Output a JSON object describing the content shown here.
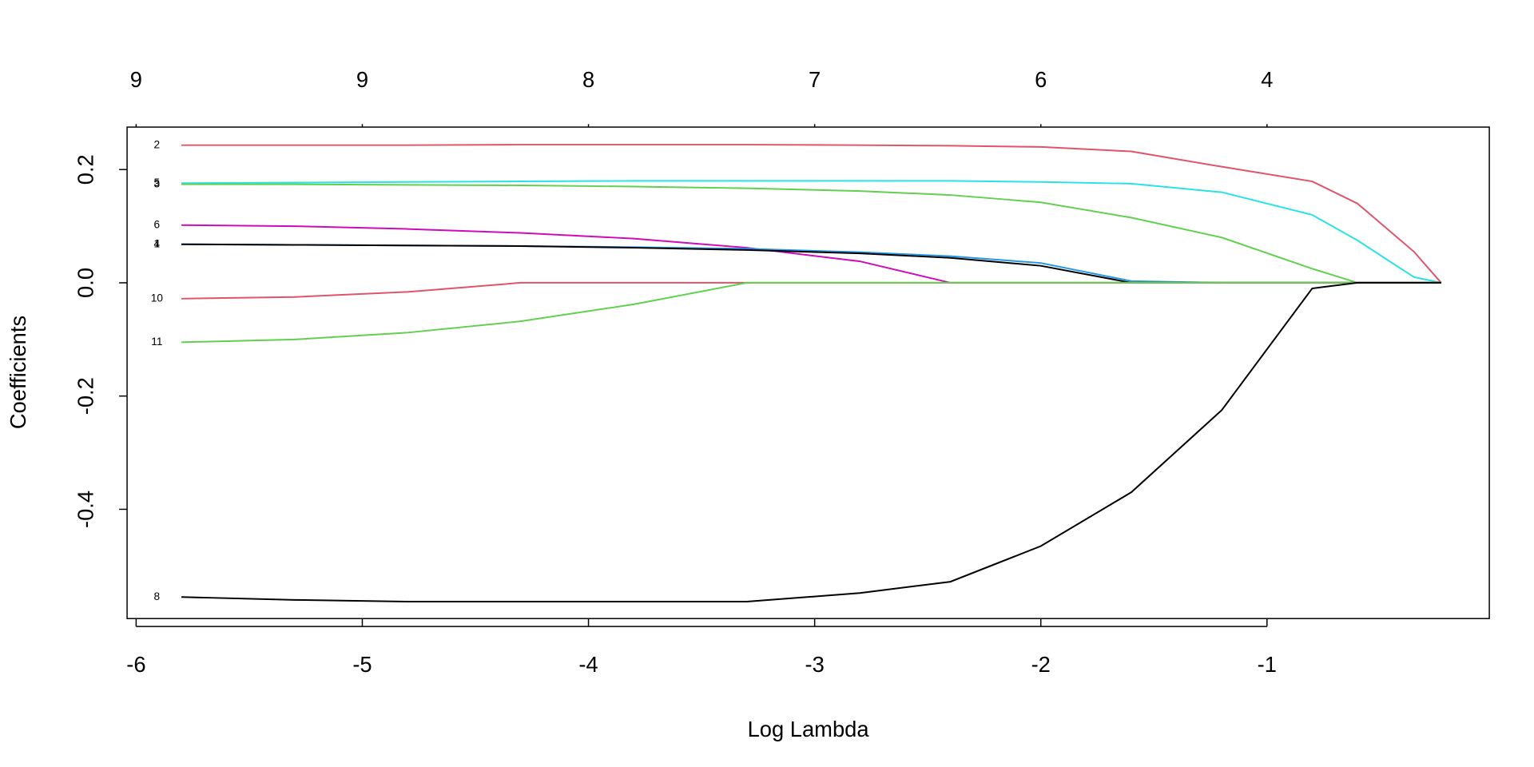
{
  "chart_data": {
    "type": "line",
    "xlabel": "Log Lambda",
    "ylabel": "Coefficients",
    "x": [
      -5.8,
      -5.3,
      -4.8,
      -4.3,
      -3.8,
      -3.3,
      -2.8,
      -2.4,
      -2.0,
      -1.6,
      -1.2,
      -0.8,
      -0.6,
      -0.35,
      -0.23
    ],
    "series": [
      {
        "name": "2",
        "color": "#DF536B",
        "values": [
          0.243,
          0.243,
          0.243,
          0.244,
          0.244,
          0.244,
          0.243,
          0.242,
          0.24,
          0.232,
          0.205,
          0.179,
          0.14,
          0.055,
          0
        ]
      },
      {
        "name": "5",
        "color": "#28E2E5",
        "values": [
          0.176,
          0.177,
          0.178,
          0.179,
          0.18,
          0.18,
          0.18,
          0.18,
          0.178,
          0.175,
          0.16,
          0.12,
          0.075,
          0.01,
          0
        ]
      },
      {
        "name": "3",
        "color": "#61D04F",
        "values": [
          0.174,
          0.174,
          0.173,
          0.172,
          0.17,
          0.167,
          0.162,
          0.155,
          0.142,
          0.115,
          0.08,
          0.025,
          0,
          0,
          0
        ]
      },
      {
        "name": "6",
        "color": "#CD0BBC",
        "values": [
          0.102,
          0.1,
          0.095,
          0.088,
          0.078,
          0.062,
          0.038,
          0,
          0,
          0,
          0,
          0,
          0,
          0,
          0
        ]
      },
      {
        "name": "4",
        "color": "#2297E6",
        "values": [
          0.068,
          0.067,
          0.066,
          0.065,
          0.063,
          0.06,
          0.054,
          0.047,
          0.035,
          0.003,
          0,
          0,
          0,
          0,
          0
        ]
      },
      {
        "name": "1",
        "color": "#000000",
        "values": [
          0.068,
          0.067,
          0.066,
          0.065,
          0.062,
          0.058,
          0.052,
          0.044,
          0.03,
          0,
          0,
          0,
          0,
          0,
          0
        ]
      },
      {
        "name": "10",
        "color": "#DF536B",
        "values": [
          -0.028,
          -0.025,
          -0.016,
          0,
          0,
          0,
          0,
          0,
          0,
          0,
          0,
          0,
          0,
          0,
          0
        ]
      },
      {
        "name": "11",
        "color": "#61D04F",
        "values": [
          -0.105,
          -0.1,
          -0.088,
          -0.068,
          -0.038,
          0,
          0,
          0,
          0,
          0,
          0,
          0,
          0,
          0,
          0
        ]
      },
      {
        "name": "8",
        "color": "#000000",
        "values": [
          -0.555,
          -0.56,
          -0.563,
          -0.563,
          -0.563,
          -0.563,
          -0.548,
          -0.528,
          -0.465,
          -0.37,
          -0.225,
          -0.01,
          0,
          0,
          0
        ]
      }
    ],
    "xlim": [
      -6.04,
      -0.017
    ],
    "ylim": [
      -0.593,
      0.275
    ],
    "xticks": [
      -6,
      -5,
      -4,
      -3,
      -2,
      -1
    ],
    "yticks": [
      -0.4,
      -0.2,
      {
        "value": 0,
        "label": "0.0"
      },
      0.2
    ],
    "top_ticks": [
      {
        "value": -6,
        "label": "9"
      },
      {
        "value": -5,
        "label": "9"
      },
      {
        "value": -4,
        "label": "8"
      },
      {
        "value": -3,
        "label": "7"
      },
      {
        "value": -2,
        "label": "6"
      },
      {
        "value": -1,
        "label": "4"
      }
    ]
  }
}
